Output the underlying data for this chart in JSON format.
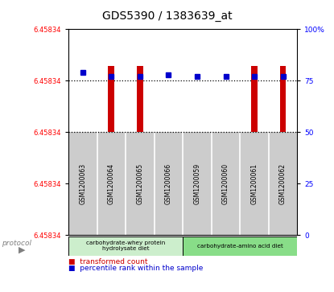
{
  "title": "GDS5390 / 1383639_at",
  "samples": [
    "GSM1200063",
    "GSM1200064",
    "GSM1200065",
    "GSM1200066",
    "GSM1200059",
    "GSM1200060",
    "GSM1200061",
    "GSM1200062"
  ],
  "left_ytick_labels": [
    "6.45834",
    "6.45834",
    "6.45834",
    "6.45834",
    "6.45834"
  ],
  "left_ytick_positions": [
    100,
    75,
    50,
    25,
    0
  ],
  "right_ytick_labels": [
    "100%",
    "75",
    "50",
    "25",
    "0"
  ],
  "right_ytick_positions": [
    100,
    75,
    50,
    25,
    0
  ],
  "dotted_lines": [
    75,
    50
  ],
  "group1_indices": [
    0,
    1,
    2,
    3
  ],
  "group2_indices": [
    4,
    5,
    6,
    7
  ],
  "group1_label": "carbohydrate-whey protein\nhydrolysate diet",
  "group2_label": "carbohydrate-amino acid diet",
  "group1_color": "#cceecc",
  "group2_color": "#88dd88",
  "bar_color": "#cc0000",
  "dot_color": "#0000cc",
  "sample_box_color": "#cccccc",
  "plot_bg_color": "#ffffff",
  "bar_base": 50,
  "bar_top_values": [
    50,
    82,
    82,
    50,
    50,
    50,
    82,
    82
  ],
  "dot_y_values": [
    79,
    77,
    77,
    78,
    77,
    77,
    77,
    77
  ],
  "legend_red": "transformed count",
  "legend_blue": "percentile rank within the sample",
  "protocol_label": "protocol"
}
